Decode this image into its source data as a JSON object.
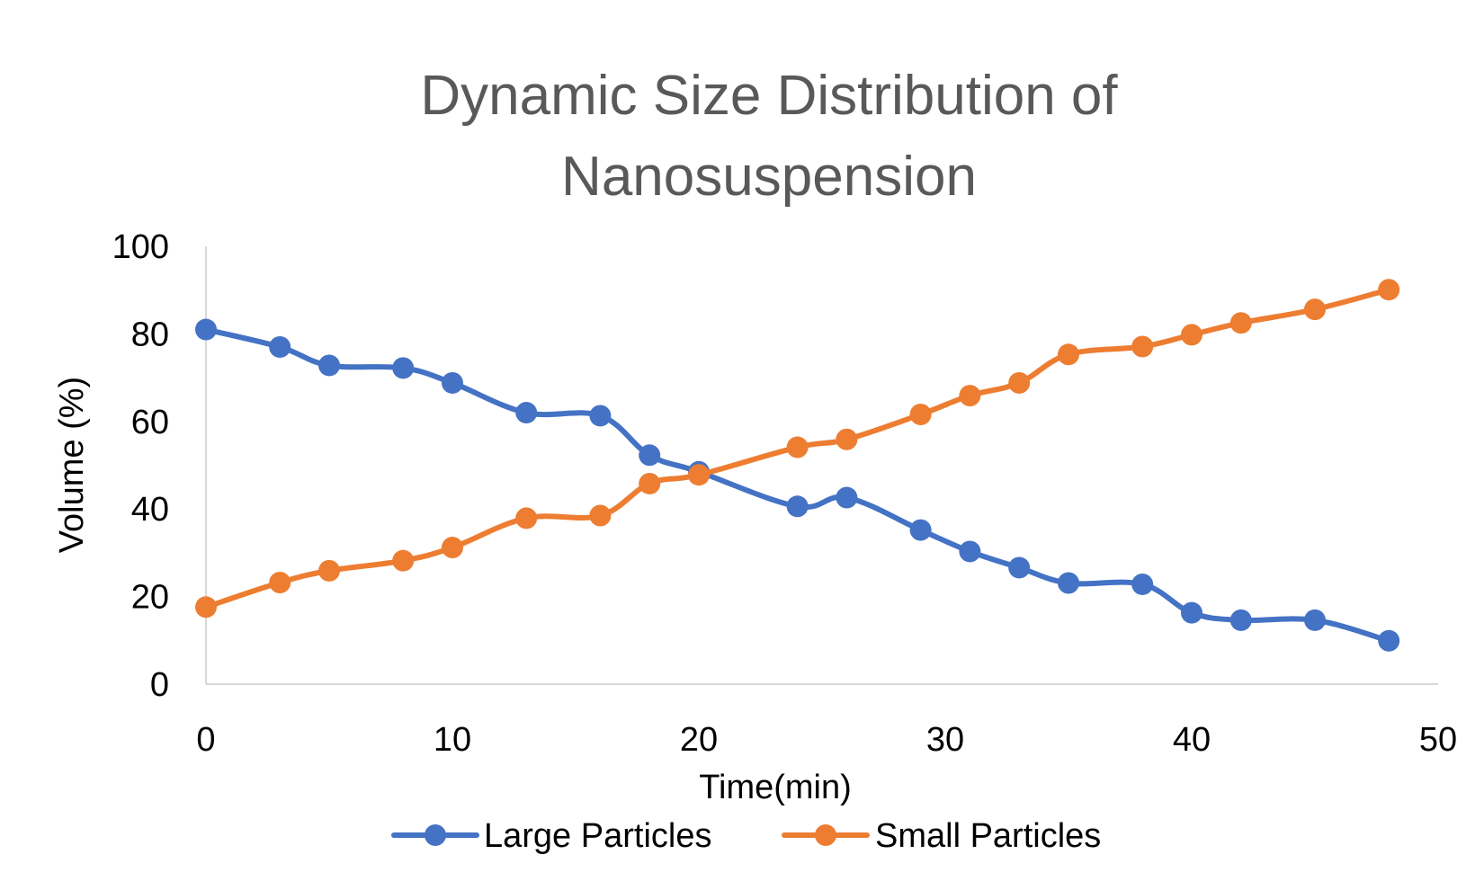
{
  "chart_data": {
    "type": "line",
    "title_lines": [
      "Dynamic Size Distribution of",
      "Nanosuspension"
    ],
    "xlabel": "Time(min)",
    "ylabel": "Volume (%)",
    "xlim": [
      0,
      50
    ],
    "ylim": [
      0,
      100
    ],
    "x_ticks": [
      0,
      10,
      20,
      30,
      40,
      50
    ],
    "y_ticks": [
      0,
      20,
      40,
      60,
      80,
      100
    ],
    "grid": false,
    "legend_position": "bottom",
    "series": [
      {
        "name": "Large Particles",
        "color": "#4472C4",
        "points": [
          [
            0,
            81
          ],
          [
            3,
            77
          ],
          [
            5,
            72.8
          ],
          [
            8,
            72.2
          ],
          [
            10,
            68.8
          ],
          [
            13,
            62
          ],
          [
            16,
            61.3
          ],
          [
            18,
            52.3
          ],
          [
            20,
            48.5
          ],
          [
            24,
            40.6
          ],
          [
            26,
            42.6
          ],
          [
            29,
            35.2
          ],
          [
            31,
            30.3
          ],
          [
            33,
            26.6
          ],
          [
            35,
            23.1
          ],
          [
            38,
            22.8
          ],
          [
            40,
            16.3
          ],
          [
            42,
            14.6
          ],
          [
            45,
            14.6
          ],
          [
            48,
            9.9
          ]
        ]
      },
      {
        "name": "Small Particles",
        "color": "#ED7D31",
        "points": [
          [
            0,
            17.6
          ],
          [
            3,
            23.2
          ],
          [
            5,
            25.9
          ],
          [
            8,
            28.2
          ],
          [
            10,
            31.2
          ],
          [
            13,
            37.9
          ],
          [
            16,
            38.5
          ],
          [
            18,
            45.8
          ],
          [
            20,
            47.8
          ],
          [
            24,
            54.1
          ],
          [
            26,
            55.9
          ],
          [
            29,
            61.6
          ],
          [
            31,
            65.9
          ],
          [
            33,
            68.8
          ],
          [
            35,
            75.3
          ],
          [
            38,
            77.1
          ],
          [
            40,
            79.8
          ],
          [
            42,
            82.5
          ],
          [
            45,
            85.6
          ],
          [
            48,
            90.1
          ]
        ]
      }
    ]
  }
}
